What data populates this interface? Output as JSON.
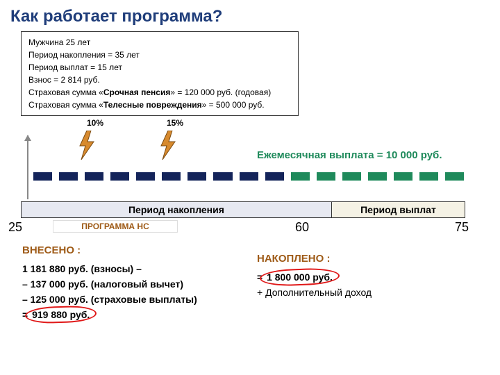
{
  "colors": {
    "title": "#1f3d7a",
    "info_border": "#333333",
    "box_bg": "#ffffff",
    "brown": "#9e5a16",
    "green": "#1f8a5b",
    "dark_blue": "#14245a",
    "gray_arrow": "#888888",
    "ring_red": "#e01818",
    "bolt_fill": "#d78a2e",
    "bolt_stroke": "#7a4a10",
    "period_bg": "#e7e9f1",
    "period_payout_bg": "#f5f2e5"
  },
  "title": "Как работает программа?",
  "info": {
    "line1": "Мужчина  25 лет",
    "line2": "Период накопления = 35 лет",
    "line3": "Период выплат  = 15 лет",
    "line4": "Взнос = 2 814 руб.",
    "line5_pre": "Страховая сумма «",
    "line5_bold": "Срочная пенсия",
    "line5_post": "» = 120 000 руб. (годовая)",
    "line6_pre": "Страховая сумма «",
    "line6_bold": "Телесные повреждения",
    "line6_post": "» = 500 000 руб."
  },
  "bolt_labels": {
    "b1": "10%",
    "b2": "15%"
  },
  "monthly_payout": "Ежемесячная выплата  = 10 000 руб.",
  "periods": {
    "accum": "Период накопления",
    "payout": "Период выплат"
  },
  "program_ns": "ПРОГРАММА НС",
  "ages": {
    "a25": "25",
    "a60": "60",
    "a75": "75"
  },
  "dashes": {
    "blue_count": 10,
    "green_count": 7
  },
  "vneseno": {
    "head": "ВНЕСЕНО :",
    "l1": " 1 181 880 руб. (взносы) –",
    "l2": "– 137 000 руб. (налоговый вычет)",
    "l3": "– 125 000 руб. (страховые выплаты)",
    "l4_pre": "=   ",
    "l4_ring": "919 880 руб."
  },
  "nakopleno": {
    "head": "НАКОПЛЕНО :",
    "l1_pre": "= ",
    "l1_ring": "  1 800 000 руб.",
    "l2": "+   Дополнительный доход"
  }
}
